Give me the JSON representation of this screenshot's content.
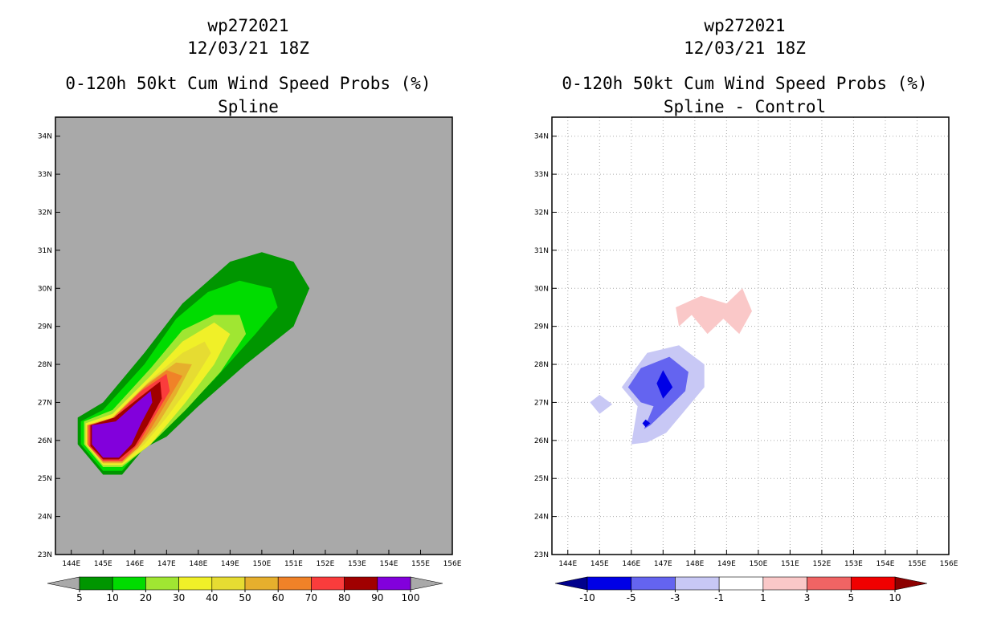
{
  "left_panel": {
    "title_line1": "wp272021",
    "title_line2": "12/03/21 18Z",
    "title_line3": "0-120h 50kt Cum Wind Speed Probs (%)",
    "title_line4": "Spline"
  },
  "right_panel": {
    "title_line1": "wp272021",
    "title_line2": "12/03/21 18Z",
    "title_line3": "0-120h 50kt Cum Wind Speed Probs (%)",
    "title_line4": "Spline - Control"
  },
  "chart_data": [
    {
      "type": "heatmap",
      "title": "0-120h 50kt Cum Wind Speed Probs (%) - Spline",
      "x_ticks": [
        "144E",
        "145E",
        "146E",
        "147E",
        "148E",
        "149E",
        "150E",
        "151E",
        "152E",
        "153E",
        "154E",
        "155E",
        "156E"
      ],
      "y_ticks": [
        "23N",
        "24N",
        "25N",
        "26N",
        "27N",
        "28N",
        "29N",
        "30N",
        "31N",
        "32N",
        "33N",
        "34N"
      ],
      "xlim": [
        143.5,
        156
      ],
      "ylim": [
        23,
        34.5
      ],
      "background_color": "#a9a9a9",
      "grid": false,
      "colorbar": {
        "labels": [
          "5",
          "10",
          "20",
          "30",
          "40",
          "50",
          "60",
          "70",
          "80",
          "90",
          "100"
        ],
        "colors": [
          "#009600",
          "#00dc00",
          "#a0e632",
          "#f0f028",
          "#e6dc32",
          "#e6af2d",
          "#f08228",
          "#fa3c3c",
          "#a00000",
          "#8200dc"
        ],
        "end_colors": [
          "#a9a9a9",
          "#a9a9a9"
        ]
      },
      "contour_levels": [
        {
          "min": 5,
          "color": "#009600",
          "points": [
            [
              145.0,
              27.0
            ],
            [
              146.3,
              28.3
            ],
            [
              147.5,
              29.6
            ],
            [
              149.0,
              30.7
            ],
            [
              150.0,
              30.95
            ],
            [
              151.0,
              30.7
            ],
            [
              151.5,
              30.0
            ],
            [
              151.0,
              29.0
            ],
            [
              149.5,
              28.0
            ],
            [
              148.0,
              26.9
            ],
            [
              147.0,
              26.1
            ],
            [
              146.3,
              25.8
            ],
            [
              145.6,
              25.1
            ],
            [
              145.0,
              25.1
            ],
            [
              144.2,
              25.9
            ],
            [
              144.2,
              26.6
            ]
          ]
        },
        {
          "min": 10,
          "color": "#00dc00",
          "points": [
            [
              145.0,
              26.8
            ],
            [
              146.3,
              28.0
            ],
            [
              147.3,
              29.2
            ],
            [
              148.3,
              29.9
            ],
            [
              149.3,
              30.2
            ],
            [
              150.3,
              30.0
            ],
            [
              150.5,
              29.5
            ],
            [
              149.8,
              28.8
            ],
            [
              148.5,
              27.6
            ],
            [
              147.3,
              26.6
            ],
            [
              146.3,
              25.9
            ],
            [
              145.6,
              25.2
            ],
            [
              145.0,
              25.2
            ],
            [
              144.3,
              25.9
            ],
            [
              144.3,
              26.5
            ]
          ]
        },
        {
          "min": 20,
          "color": "#a0e632",
          "points": [
            [
              145.3,
              26.8
            ],
            [
              146.5,
              27.9
            ],
            [
              147.5,
              28.9
            ],
            [
              148.5,
              29.3
            ],
            [
              149.3,
              29.3
            ],
            [
              149.5,
              28.8
            ],
            [
              148.7,
              27.8
            ],
            [
              147.6,
              26.8
            ],
            [
              146.5,
              25.9
            ],
            [
              145.6,
              25.3
            ],
            [
              145.0,
              25.3
            ],
            [
              144.4,
              25.9
            ],
            [
              144.4,
              26.5
            ]
          ]
        },
        {
          "min": 30,
          "color": "#f0f028",
          "points": [
            [
              145.3,
              26.7
            ],
            [
              146.5,
              27.7
            ],
            [
              147.5,
              28.6
            ],
            [
              148.5,
              29.1
            ],
            [
              149.0,
              28.8
            ],
            [
              148.5,
              28.0
            ],
            [
              147.6,
              27.0
            ],
            [
              146.5,
              25.9
            ],
            [
              145.6,
              25.35
            ],
            [
              145.0,
              25.35
            ],
            [
              144.45,
              25.9
            ],
            [
              144.45,
              26.45
            ]
          ]
        },
        {
          "min": 40,
          "color": "#e6dc32",
          "points": [
            [
              145.3,
              26.6
            ],
            [
              146.5,
              27.6
            ],
            [
              147.5,
              28.3
            ],
            [
              148.2,
              28.6
            ],
            [
              148.4,
              28.3
            ],
            [
              147.8,
              27.5
            ],
            [
              147.0,
              26.6
            ],
            [
              146.3,
              25.9
            ],
            [
              145.6,
              25.4
            ],
            [
              145.0,
              25.4
            ],
            [
              144.5,
              25.9
            ],
            [
              144.5,
              26.4
            ]
          ]
        },
        {
          "min": 50,
          "color": "#e6af2d",
          "points": [
            [
              145.3,
              26.6
            ],
            [
              146.4,
              27.5
            ],
            [
              147.3,
              28.05
            ],
            [
              147.8,
              28.0
            ],
            [
              147.3,
              27.2
            ],
            [
              146.7,
              26.4
            ],
            [
              146.2,
              25.9
            ],
            [
              145.6,
              25.4
            ],
            [
              145.0,
              25.4
            ],
            [
              144.5,
              25.9
            ],
            [
              144.5,
              26.4
            ]
          ]
        },
        {
          "min": 60,
          "color": "#f08228",
          "points": [
            [
              145.3,
              26.6
            ],
            [
              146.3,
              27.4
            ],
            [
              147.0,
              27.85
            ],
            [
              147.5,
              27.7
            ],
            [
              147.0,
              27.0
            ],
            [
              146.5,
              26.3
            ],
            [
              146.1,
              25.8
            ],
            [
              145.6,
              25.45
            ],
            [
              145.0,
              25.45
            ],
            [
              144.5,
              25.9
            ],
            [
              144.5,
              26.4
            ]
          ]
        },
        {
          "min": 70,
          "color": "#fa3c3c",
          "points": [
            [
              145.3,
              26.55
            ],
            [
              146.2,
              27.3
            ],
            [
              147.0,
              27.75
            ],
            [
              147.1,
              27.3
            ],
            [
              146.6,
              26.6
            ],
            [
              146.1,
              25.9
            ],
            [
              145.6,
              25.45
            ],
            [
              145.0,
              25.45
            ],
            [
              144.55,
              25.85
            ],
            [
              144.55,
              26.4
            ]
          ]
        },
        {
          "min": 80,
          "color": "#a00000",
          "points": [
            [
              145.35,
              26.6
            ],
            [
              146.1,
              27.1
            ],
            [
              146.8,
              27.55
            ],
            [
              146.85,
              27.1
            ],
            [
              146.4,
              26.4
            ],
            [
              146.0,
              25.85
            ],
            [
              145.5,
              25.5
            ],
            [
              145.0,
              25.5
            ],
            [
              144.6,
              25.85
            ],
            [
              144.6,
              26.4
            ]
          ]
        },
        {
          "min": 90,
          "color": "#8200dc",
          "points": [
            [
              145.4,
              26.5
            ],
            [
              146.0,
              26.95
            ],
            [
              146.5,
              27.3
            ],
            [
              146.55,
              27.0
            ],
            [
              146.2,
              26.45
            ],
            [
              145.9,
              25.9
            ],
            [
              145.5,
              25.55
            ],
            [
              145.0,
              25.55
            ],
            [
              144.65,
              25.9
            ],
            [
              144.65,
              26.4
            ]
          ]
        }
      ]
    },
    {
      "type": "heatmap",
      "title": "0-120h 50kt Cum Wind Speed Probs (%) - Spline - Control",
      "x_ticks": [
        "144E",
        "145E",
        "146E",
        "147E",
        "148E",
        "149E",
        "150E",
        "151E",
        "152E",
        "153E",
        "154E",
        "155E",
        "156E"
      ],
      "y_ticks": [
        "23N",
        "24N",
        "25N",
        "26N",
        "27N",
        "28N",
        "29N",
        "30N",
        "31N",
        "32N",
        "33N",
        "34N"
      ],
      "xlim": [
        143.5,
        156
      ],
      "ylim": [
        23,
        34.5
      ],
      "background_color": "#ffffff",
      "grid": true,
      "colorbar": {
        "labels": [
          "-10",
          "-5",
          "-3",
          "-1",
          "1",
          "3",
          "5",
          "10"
        ],
        "colors": [
          "#0000e6",
          "#6464f0",
          "#c8c8f5",
          "#ffffff",
          "#fac8c8",
          "#f06464",
          "#f00000"
        ],
        "end_colors": [
          "#00008c",
          "#8c0000"
        ]
      },
      "contour_levels": [
        {
          "range": "1 to 3",
          "color": "#fac8c8",
          "points": [
            [
              147.4,
              29.5
            ],
            [
              148.2,
              29.8
            ],
            [
              149.0,
              29.6
            ],
            [
              149.5,
              30.0
            ],
            [
              149.8,
              29.4
            ],
            [
              149.4,
              28.8
            ],
            [
              148.9,
              29.2
            ],
            [
              148.4,
              28.8
            ],
            [
              147.9,
              29.3
            ],
            [
              147.5,
              29.0
            ]
          ]
        },
        {
          "range": "-3 to -1",
          "color": "#c8c8f5",
          "points": [
            [
              144.7,
              27.0
            ],
            [
              145.0,
              27.2
            ],
            [
              145.4,
              26.95
            ],
            [
              145.0,
              26.7
            ]
          ]
        },
        {
          "range": "-3 to -1",
          "color": "#c8c8f5",
          "points": [
            [
              146.5,
              28.3
            ],
            [
              147.5,
              28.5
            ],
            [
              148.3,
              28.0
            ],
            [
              148.3,
              27.4
            ],
            [
              147.6,
              26.7
            ],
            [
              147.1,
              26.2
            ],
            [
              146.5,
              25.95
            ],
            [
              146.0,
              25.9
            ],
            [
              146.2,
              26.9
            ],
            [
              145.7,
              27.4
            ]
          ]
        },
        {
          "range": "-5 to -3",
          "color": "#6464f0",
          "points": [
            [
              146.3,
              27.9
            ],
            [
              147.2,
              28.2
            ],
            [
              147.8,
              27.8
            ],
            [
              147.7,
              27.3
            ],
            [
              147.1,
              26.8
            ],
            [
              146.6,
              26.4
            ],
            [
              146.4,
              26.3
            ],
            [
              146.7,
              26.9
            ],
            [
              146.3,
              27.0
            ],
            [
              145.9,
              27.4
            ]
          ]
        },
        {
          "range": "-10 to -5",
          "color": "#0000e6",
          "points": [
            [
              147.0,
              27.85
            ],
            [
              147.3,
              27.4
            ],
            [
              147.0,
              27.1
            ],
            [
              146.8,
              27.5
            ]
          ]
        },
        {
          "range": "-10 to -5",
          "color": "#0000e6",
          "points": [
            [
              146.45,
              26.55
            ],
            [
              146.6,
              26.45
            ],
            [
              146.45,
              26.35
            ],
            [
              146.35,
              26.45
            ]
          ]
        }
      ]
    }
  ]
}
